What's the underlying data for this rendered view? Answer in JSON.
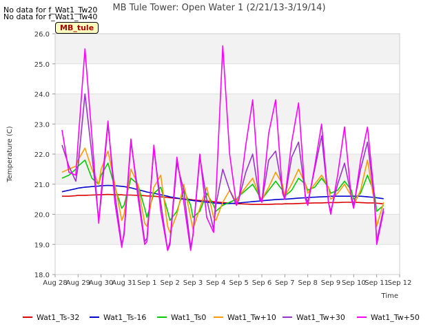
{
  "chart_data": {
    "type": "line",
    "title": "MB Tule Tower: Open Water 1 (2/21/13-3/19/14)",
    "ylabel": "Temperature (C)",
    "xlabel": "Time",
    "ylim": [
      18.0,
      26.0
    ],
    "xlim": [
      0,
      15
    ],
    "y_ticks": [
      "18.0",
      "19.0",
      "20.0",
      "21.0",
      "22.0",
      "23.0",
      "24.0",
      "25.0",
      "26.0"
    ],
    "x_ticks": [
      "Aug 28",
      "Aug 29",
      "Aug 30",
      "Aug 31",
      "Sep 1",
      "Sep 2",
      "Sep 3",
      "Sep 4",
      "Sep 5",
      "Sep 6",
      "Sep 7",
      "Sep 8",
      "Sep 9",
      "Sep 10",
      "Sep 11",
      "Sep 12"
    ],
    "grid": "horizontal bands",
    "legend_position": "bottom",
    "no_data_notes": [
      "No data for f_Wat1_Tw20",
      "No data for f_Wat1_Tw40"
    ],
    "site_label": "MB_tule",
    "x": [
      0.3,
      0.6,
      0.9,
      1.0,
      1.3,
      1.6,
      1.9,
      2.0,
      2.3,
      2.6,
      2.9,
      3.0,
      3.3,
      3.6,
      3.9,
      4.0,
      4.3,
      4.6,
      4.9,
      5.0,
      5.3,
      5.6,
      5.9,
      6.0,
      6.3,
      6.6,
      6.9,
      7.0,
      7.3,
      7.6,
      7.9,
      8.0,
      8.3,
      8.6,
      8.9,
      9.0,
      9.3,
      9.6,
      9.9,
      10.0,
      10.3,
      10.6,
      10.9,
      11.0,
      11.3,
      11.6,
      11.9,
      12.0,
      12.3,
      12.6,
      12.9,
      13.0,
      13.3,
      13.6,
      13.9,
      14.0,
      14.3
    ],
    "series": [
      {
        "name": "Wat1_Ts-32",
        "color": "#dd0000",
        "values": [
          20.6,
          20.6,
          20.62,
          20.63,
          20.63,
          20.64,
          20.65,
          20.65,
          20.66,
          20.65,
          20.65,
          20.64,
          20.64,
          20.63,
          20.62,
          20.61,
          20.6,
          20.58,
          20.56,
          20.55,
          20.53,
          20.51,
          20.49,
          20.48,
          20.46,
          20.44,
          20.42,
          20.41,
          20.39,
          20.37,
          20.35,
          20.35,
          20.34,
          20.33,
          20.33,
          20.33,
          20.33,
          20.34,
          20.34,
          20.35,
          20.35,
          20.36,
          20.37,
          20.37,
          20.38,
          20.38,
          20.39,
          20.39,
          20.39,
          20.4,
          20.4,
          20.4,
          20.39,
          20.38,
          20.38,
          20.37,
          20.35
        ]
      },
      {
        "name": "Wat1_Ts-16",
        "color": "#0000cc",
        "values": [
          20.75,
          20.8,
          20.85,
          20.87,
          20.9,
          20.92,
          20.94,
          20.95,
          20.96,
          20.95,
          20.93,
          20.92,
          20.88,
          20.82,
          20.76,
          20.74,
          20.7,
          20.65,
          20.6,
          20.58,
          20.54,
          20.5,
          20.47,
          20.46,
          20.43,
          20.4,
          20.38,
          20.37,
          20.36,
          20.36,
          20.37,
          20.38,
          20.4,
          20.42,
          20.44,
          20.45,
          20.47,
          20.49,
          20.5,
          20.5,
          20.52,
          20.54,
          20.55,
          20.56,
          20.57,
          20.58,
          20.59,
          20.6,
          20.6,
          20.6,
          20.6,
          20.6,
          20.6,
          20.58,
          20.56,
          20.55,
          20.52
        ]
      },
      {
        "name": "Wat1_Ts0",
        "color": "#00cc00",
        "values": [
          21.2,
          21.3,
          21.5,
          21.6,
          21.8,
          21.2,
          21.0,
          21.3,
          21.7,
          20.9,
          20.2,
          20.3,
          21.2,
          21.0,
          20.2,
          19.9,
          20.7,
          20.9,
          20.1,
          19.8,
          20.1,
          20.8,
          20.3,
          19.9,
          20.1,
          20.7,
          20.3,
          20.1,
          20.3,
          20.4,
          20.5,
          20.6,
          20.8,
          21.0,
          20.6,
          20.5,
          20.8,
          21.1,
          20.8,
          20.6,
          20.8,
          21.2,
          21.0,
          20.8,
          20.9,
          21.2,
          20.9,
          20.7,
          20.8,
          21.1,
          20.8,
          20.5,
          20.7,
          21.3,
          20.7,
          20.1,
          20.3
        ]
      },
      {
        "name": "Wat1_Tw+10",
        "color": "#ff9900",
        "values": [
          21.4,
          21.5,
          21.6,
          21.8,
          22.2,
          21.5,
          21.0,
          21.5,
          22.1,
          21.0,
          19.8,
          20.0,
          21.5,
          21.0,
          19.7,
          19.6,
          20.9,
          21.3,
          19.6,
          19.4,
          20.0,
          21.0,
          19.9,
          19.5,
          20.2,
          20.9,
          19.9,
          19.8,
          20.4,
          20.8,
          20.4,
          20.6,
          20.9,
          21.2,
          20.6,
          20.5,
          20.9,
          21.4,
          21.0,
          20.6,
          21.0,
          21.5,
          21.0,
          20.7,
          21.0,
          21.3,
          20.9,
          20.5,
          20.7,
          21.0,
          20.6,
          20.3,
          20.8,
          21.8,
          20.4,
          19.6,
          20.4
        ]
      },
      {
        "name": "Wat1_Tw+30",
        "color": "#9933cc",
        "values": [
          22.3,
          21.6,
          21.1,
          21.6,
          24.0,
          22.0,
          19.8,
          20.5,
          23.0,
          20.7,
          19.0,
          19.3,
          22.4,
          20.8,
          19.1,
          19.2,
          22.2,
          20.4,
          18.8,
          19.0,
          21.7,
          20.8,
          18.9,
          19.3,
          21.9,
          20.5,
          19.5,
          20.3,
          21.5,
          20.8,
          20.3,
          20.5,
          21.4,
          22.0,
          20.5,
          20.4,
          21.8,
          22.1,
          20.8,
          20.5,
          21.9,
          22.4,
          20.6,
          20.4,
          21.5,
          22.6,
          20.4,
          20.1,
          21.0,
          21.7,
          20.6,
          20.3,
          21.5,
          22.4,
          20.5,
          19.1,
          20.2
        ]
      },
      {
        "name": "Wat1_Tw+50",
        "color": "#ff00ff",
        "values": [
          22.8,
          21.4,
          21.3,
          22.4,
          25.5,
          22.6,
          19.7,
          20.7,
          23.1,
          20.4,
          18.9,
          19.4,
          22.5,
          20.6,
          19.0,
          19.1,
          22.3,
          20.1,
          18.8,
          19.1,
          21.9,
          20.4,
          18.8,
          19.3,
          22.0,
          19.9,
          19.4,
          20.6,
          25.6,
          22.0,
          20.3,
          20.5,
          22.3,
          23.8,
          20.6,
          20.4,
          22.7,
          23.8,
          20.7,
          20.5,
          22.4,
          23.7,
          20.5,
          20.3,
          21.6,
          23.0,
          20.4,
          20.0,
          21.3,
          22.9,
          20.5,
          20.2,
          21.8,
          22.9,
          20.6,
          19.0,
          20.1
        ]
      }
    ]
  }
}
